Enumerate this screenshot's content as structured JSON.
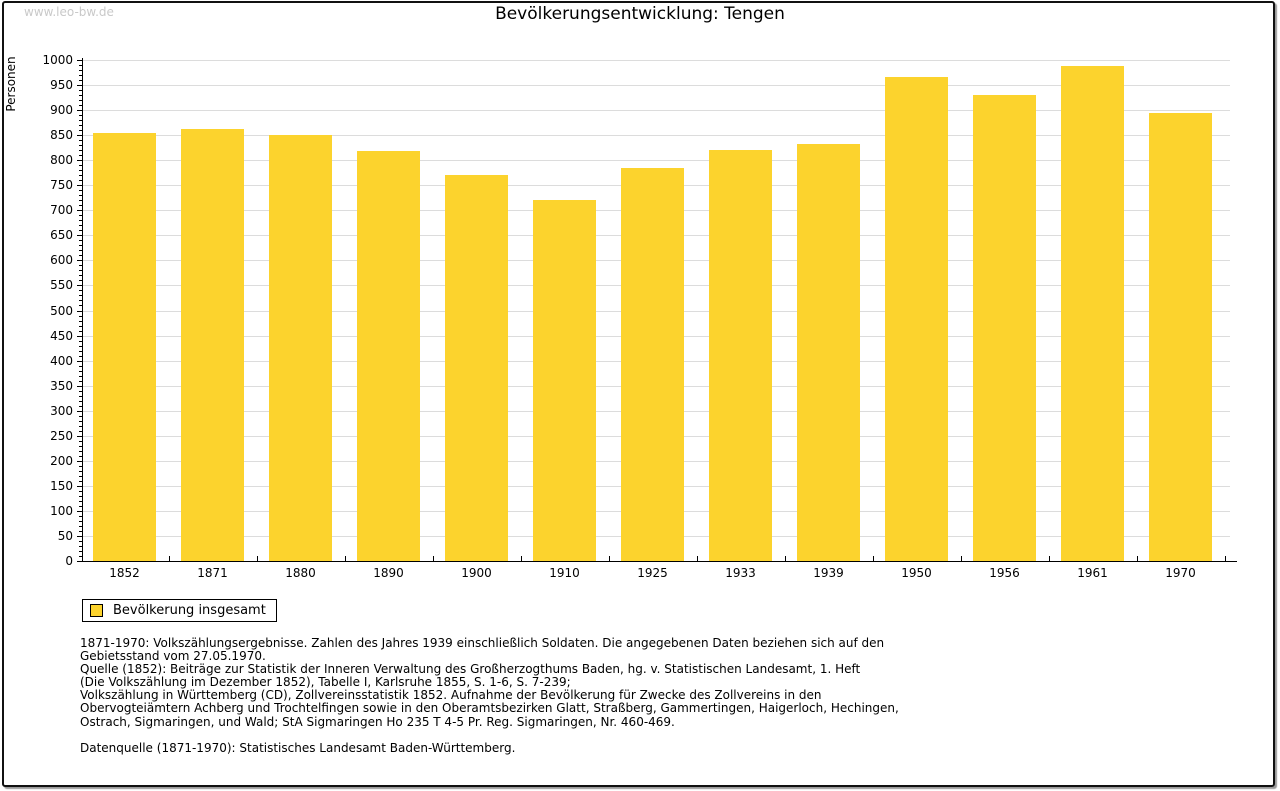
{
  "watermark": "www.leo-bw.de",
  "title": "Bevölkerungsentwicklung: Tengen",
  "chart_data": {
    "type": "bar",
    "title": "Bevölkerungsentwicklung: Tengen",
    "xlabel": "",
    "ylabel": "Personen",
    "categories": [
      "1852",
      "1871",
      "1880",
      "1890",
      "1900",
      "1910",
      "1925",
      "1933",
      "1939",
      "1950",
      "1956",
      "1961",
      "1970"
    ],
    "values": [
      855,
      863,
      851,
      819,
      771,
      720,
      785,
      821,
      833,
      967,
      930,
      989,
      894
    ],
    "ylim": [
      0,
      1000
    ],
    "ytick_step": 50,
    "y_minor_tick_step": 10,
    "grid": true,
    "legend_position": "bottom-left",
    "colors": {
      "bar": "#fcd32d",
      "grid": "#dcdcdc",
      "axis": "#000000",
      "watermark": "#c9c9c9"
    }
  },
  "legend": {
    "label": "Bevölkerung insgesamt"
  },
  "footnotes": {
    "lines": [
      "1871-1970: Volkszählungsergebnisse. Zahlen des Jahres 1939 einschließlich Soldaten. Die angegebenen Daten beziehen sich auf den",
      "Gebietsstand vom 27.05.1970.",
      "Quelle (1852): Beiträge zur Statistik der Inneren Verwaltung des Großherzogthums Baden, hg. v. Statistischen Landesamt, 1. Heft",
      "(Die Volkszählung im Dezember 1852), Tabelle I, Karlsruhe 1855, S. 1-6, S. 7-239;",
      "Volkszählung in Württemberg (CD), Zollvereinsstatistik 1852. Aufnahme der Bevölkerung für Zwecke des Zollvereins in den",
      "Obervogteiämtern Achberg und Trochtelfingen sowie in den Oberamtsbezirken Glatt, Straßberg, Gammertingen, Haigerloch, Hechingen,",
      "Ostrach, Sigmaringen, und Wald; StA Sigmaringen Ho 235 T 4-5 Pr. Reg. Sigmaringen, Nr. 460-469."
    ]
  },
  "datasource": "Datenquelle (1871-1970): Statistisches Landesamt Baden-Württemberg."
}
